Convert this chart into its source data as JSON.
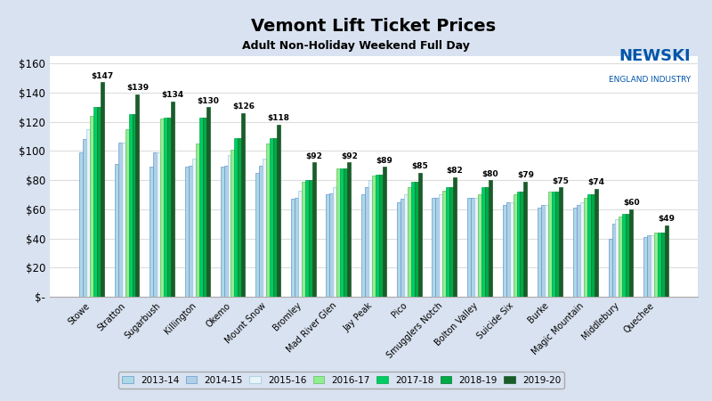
{
  "title": "Vemont Lift Ticket Prices",
  "subtitle": "Adult Non-Holiday Weekend Full Day",
  "categories": [
    "Stowe",
    "Stratton",
    "Sugarbush",
    "Killington",
    "Okemo",
    "Mount Snow",
    "Bromley",
    "Mad River Glen",
    "Jay Peak",
    "Pico",
    "Smugglers Notch",
    "Bolton Valley",
    "Suicide Six",
    "Burke",
    "Magic Mountain",
    "Middlebury",
    "Quechee"
  ],
  "series_labels": [
    "2013-14",
    "2014-15",
    "2015-16",
    "2016-17",
    "2017-18",
    "2018-19",
    "2019-20"
  ],
  "series_face_colors": [
    "#ADD8E6",
    "#B0D0E8",
    "#E8F4F8",
    "#90EE90",
    "#00CC66",
    "#00AA44",
    "#1A5C2A"
  ],
  "series_edge_colors": [
    "#6699CC",
    "#6699CC",
    "#99CCDD",
    "#66BB66",
    "#00AA44",
    "#007733",
    "#1A5C2A"
  ],
  "values": {
    "2013-14": [
      99,
      91,
      89,
      89,
      89,
      85,
      67,
      70,
      70,
      65,
      68,
      68,
      63,
      61,
      61,
      40,
      41
    ],
    "2014-15": [
      108,
      106,
      99,
      90,
      90,
      90,
      68,
      71,
      75,
      67,
      68,
      68,
      65,
      63,
      63,
      50,
      42
    ],
    "2015-16": [
      115,
      106,
      99,
      95,
      97,
      95,
      73,
      75,
      80,
      70,
      70,
      68,
      65,
      63,
      65,
      53,
      42
    ],
    "2016-17": [
      124,
      115,
      122,
      105,
      101,
      105,
      79,
      88,
      83,
      75,
      73,
      70,
      70,
      72,
      68,
      55,
      44
    ],
    "2017-18": [
      130,
      125,
      123,
      123,
      109,
      109,
      80,
      88,
      84,
      79,
      75,
      75,
      72,
      72,
      70,
      57,
      44
    ],
    "2018-19": [
      130,
      125,
      123,
      123,
      109,
      109,
      80,
      88,
      84,
      79,
      75,
      75,
      72,
      72,
      70,
      57,
      44
    ],
    "2019-20": [
      147,
      139,
      134,
      130,
      126,
      118,
      92,
      92,
      89,
      85,
      82,
      80,
      79,
      75,
      74,
      60,
      49
    ]
  },
  "ylim": [
    0,
    165
  ],
  "yticks": [
    0,
    20,
    40,
    60,
    80,
    100,
    120,
    140,
    160
  ],
  "fig_bg_color": "#D9E2F0",
  "plot_bg_color": "#FFFFFF",
  "grid_color": "#DDDDDD",
  "bar_width": 0.1,
  "label_fontsize": 6.5,
  "xtick_fontsize": 7.0,
  "ytick_fontsize": 8.5,
  "logo_line1": "NEWSKI",
  "logo_line2": "ENGLAND INDUSTRY",
  "logo_color": "#0055AA"
}
